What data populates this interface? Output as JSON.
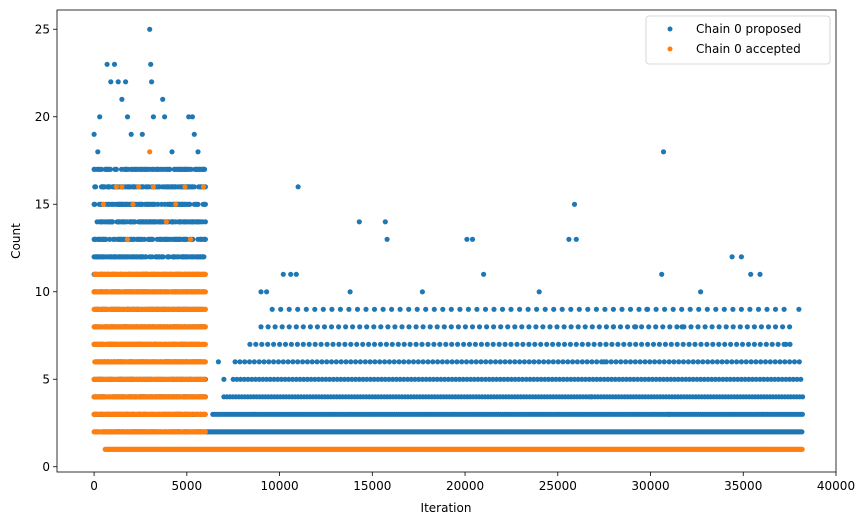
{
  "chart_data": {
    "type": "scatter",
    "xlabel": "Iteration",
    "ylabel": "Count",
    "xlim": [
      -2000,
      40000
    ],
    "ylim": [
      -0.3,
      26.1
    ],
    "xticks": [
      0,
      5000,
      10000,
      15000,
      20000,
      25000,
      30000,
      35000,
      40000
    ],
    "xtick_labels": [
      "0",
      "5000",
      "10000",
      "15000",
      "20000",
      "25000",
      "30000",
      "35000",
      "40000"
    ],
    "yticks": [
      0,
      5,
      10,
      15,
      20,
      25
    ],
    "ytick_labels": [
      "0",
      "5",
      "10",
      "15",
      "20",
      "25"
    ],
    "legend_position": "top-right",
    "grid": false,
    "colors": {
      "proposed": "#1f77b4",
      "accepted": "#ff7f0e"
    },
    "series": [
      {
        "name": "Chain 0 proposed",
        "color": "#1f77b4",
        "points": [
          {
            "x": 0,
            "y": 19
          },
          {
            "x": 200,
            "y": 18
          },
          {
            "x": 300,
            "y": 20
          },
          {
            "x": 700,
            "y": 23
          },
          {
            "x": 900,
            "y": 22
          },
          {
            "x": 1100,
            "y": 23
          },
          {
            "x": 1300,
            "y": 22
          },
          {
            "x": 1500,
            "y": 21
          },
          {
            "x": 1700,
            "y": 22
          },
          {
            "x": 1800,
            "y": 20
          },
          {
            "x": 2000,
            "y": 19
          },
          {
            "x": 2300,
            "y": 17
          },
          {
            "x": 2600,
            "y": 19
          },
          {
            "x": 3000,
            "y": 25
          },
          {
            "x": 3050,
            "y": 23
          },
          {
            "x": 3100,
            "y": 22
          },
          {
            "x": 3200,
            "y": 20
          },
          {
            "x": 3700,
            "y": 21
          },
          {
            "x": 3800,
            "y": 20
          },
          {
            "x": 4200,
            "y": 18
          },
          {
            "x": 4600,
            "y": 17
          },
          {
            "x": 5100,
            "y": 20
          },
          {
            "x": 5300,
            "y": 20
          },
          {
            "x": 5400,
            "y": 19
          },
          {
            "x": 5600,
            "y": 18
          },
          {
            "x": 5800,
            "y": 17
          },
          {
            "x": 11000,
            "y": 16
          },
          {
            "x": 14300,
            "y": 14
          },
          {
            "x": 15700,
            "y": 14
          },
          {
            "x": 15800,
            "y": 13
          },
          {
            "x": 20100,
            "y": 13
          },
          {
            "x": 20400,
            "y": 13
          },
          {
            "x": 25600,
            "y": 13
          },
          {
            "x": 25900,
            "y": 15
          },
          {
            "x": 26000,
            "y": 13
          },
          {
            "x": 30700,
            "y": 18
          },
          {
            "x": 30600,
            "y": 11
          },
          {
            "x": 34400,
            "y": 12
          },
          {
            "x": 34900,
            "y": 12
          },
          {
            "x": 35400,
            "y": 11
          },
          {
            "x": 35900,
            "y": 11
          },
          {
            "x": 38000,
            "y": 9
          },
          {
            "x": 32700,
            "y": 10
          },
          {
            "x": 9000,
            "y": 10
          },
          {
            "x": 9300,
            "y": 10
          },
          {
            "x": 10200,
            "y": 11
          },
          {
            "x": 10600,
            "y": 11
          },
          {
            "x": 10900,
            "y": 11
          },
          {
            "x": 13800,
            "y": 10
          },
          {
            "x": 17700,
            "y": 10
          },
          {
            "x": 21000,
            "y": 11
          },
          {
            "x": 24000,
            "y": 10
          },
          {
            "x": 28000,
            "y": 8
          },
          {
            "x": 29200,
            "y": 8
          },
          {
            "x": 29800,
            "y": 9
          },
          {
            "x": 31700,
            "y": 8
          },
          {
            "x": 37300,
            "y": 7
          },
          {
            "x": 6700,
            "y": 6
          },
          {
            "x": 7000,
            "y": 5
          },
          {
            "x": 27500,
            "y": 6
          },
          {
            "x": 31000,
            "y": 3
          },
          {
            "x": 26800,
            "y": 4
          }
        ],
        "bands": [
          {
            "y": 2,
            "x_start": 6000,
            "x_end": 38200,
            "step": 60
          },
          {
            "y": 3,
            "x_start": 6400,
            "x_end": 38200,
            "step": 110
          },
          {
            "y": 4,
            "x_start": 7000,
            "x_end": 38200,
            "step": 160
          },
          {
            "y": 5,
            "x_start": 7500,
            "x_end": 38200,
            "step": 200
          },
          {
            "y": 6,
            "x_start": 7600,
            "x_end": 38200,
            "step": 260
          },
          {
            "y": 7,
            "x_start": 8400,
            "x_end": 37600,
            "step": 320
          },
          {
            "y": 8,
            "x_start": 9000,
            "x_end": 37800,
            "step": 380
          },
          {
            "y": 9,
            "x_start": 9600,
            "x_end": 37400,
            "step": 460
          }
        ],
        "clusters": [
          {
            "x_start": 0,
            "x_end": 6000,
            "y_from": 2,
            "y_to": 17,
            "density": 0.55
          }
        ]
      },
      {
        "name": "Chain 0 accepted",
        "color": "#ff7f0e",
        "points": [
          {
            "x": 3000,
            "y": 18
          },
          {
            "x": 1200,
            "y": 16
          },
          {
            "x": 1500,
            "y": 16
          },
          {
            "x": 2400,
            "y": 16
          },
          {
            "x": 3200,
            "y": 16
          },
          {
            "x": 4900,
            "y": 16
          },
          {
            "x": 5900,
            "y": 16
          },
          {
            "x": 500,
            "y": 15
          },
          {
            "x": 2100,
            "y": 15
          },
          {
            "x": 4400,
            "y": 15
          },
          {
            "x": 3900,
            "y": 14
          },
          {
            "x": 1800,
            "y": 13
          },
          {
            "x": 5200,
            "y": 13
          }
        ],
        "bands": [
          {
            "y": 1,
            "x_start": 600,
            "x_end": 38200,
            "step": 45
          }
        ],
        "clusters": [
          {
            "x_start": 0,
            "x_end": 6000,
            "y_from": 2,
            "y_to": 11,
            "density": 0.85
          }
        ]
      }
    ]
  }
}
